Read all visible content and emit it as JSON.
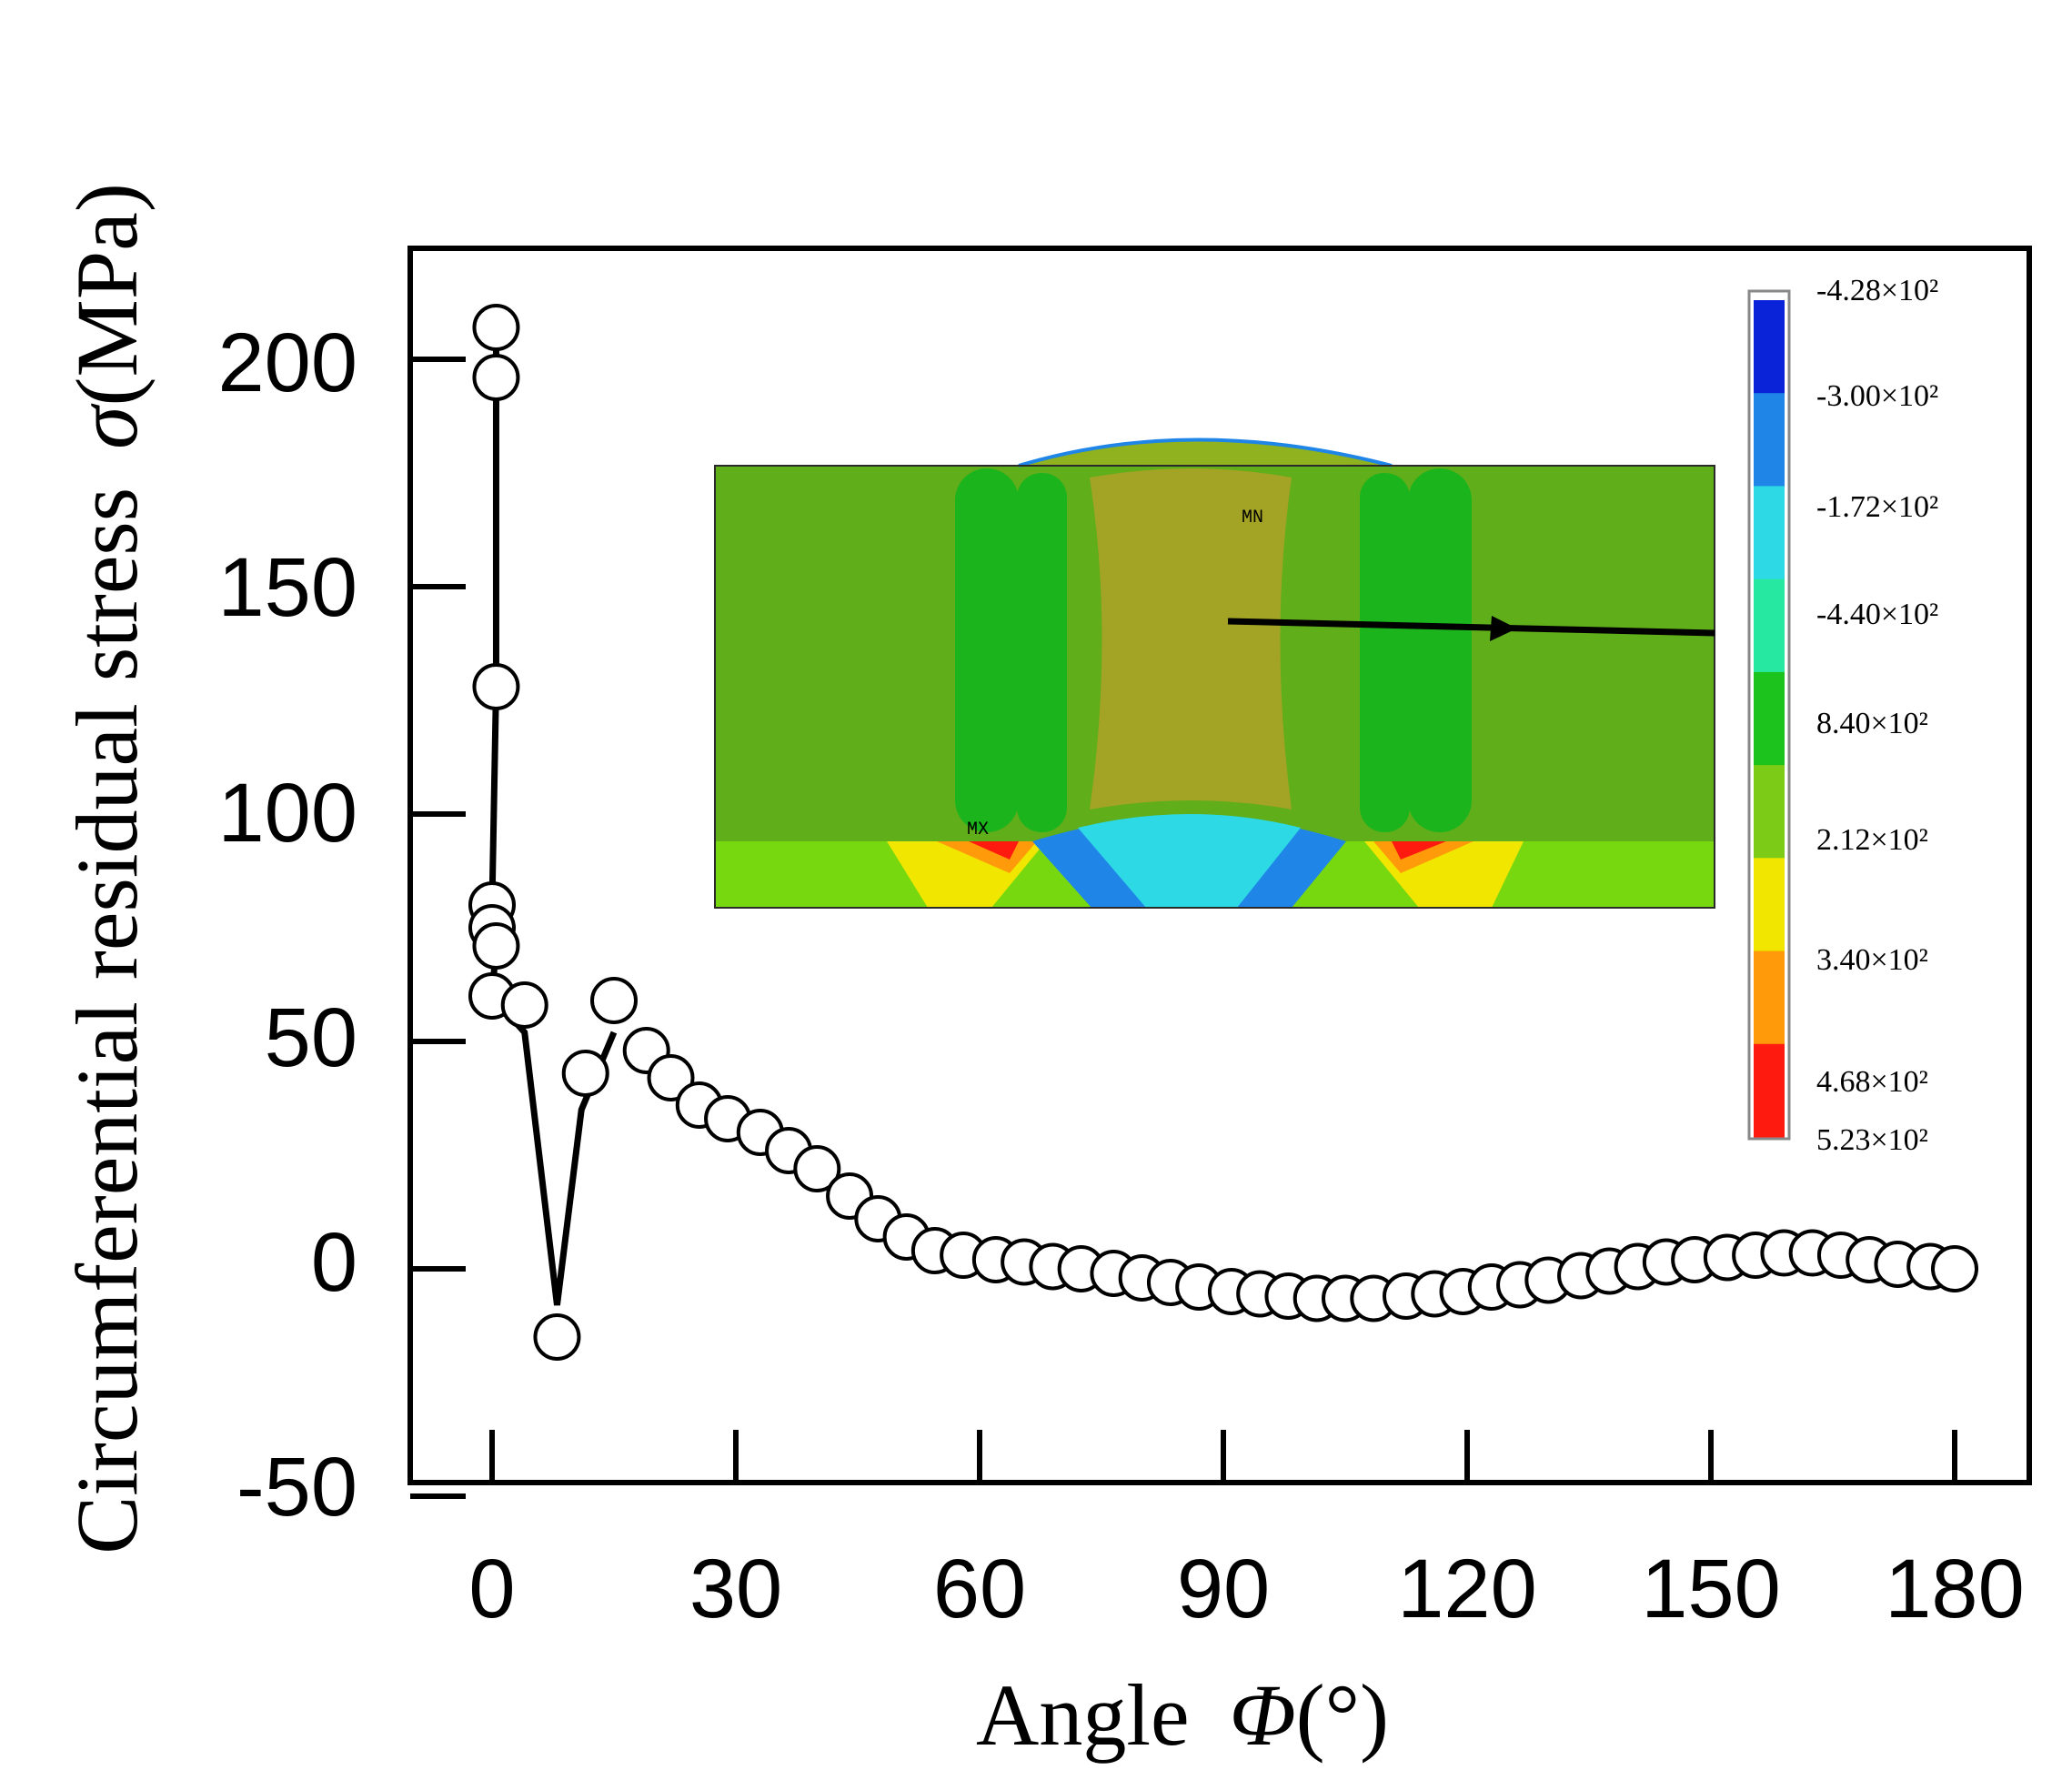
{
  "chart_data": {
    "type": "scatter",
    "title": "",
    "xlabel": "Angle",
    "xlabel_symbol": "Φ",
    "xlabel_unit": "(°)",
    "ylabel": "Circumferential residual stress",
    "ylabel_symbol": "σ",
    "ylabel_unit": "(MPa)",
    "xlim": [
      -17,
      185
    ],
    "ylim": [
      -50,
      225
    ],
    "xticks": [
      "0",
      "30",
      "60",
      "90",
      "120",
      "150",
      "180"
    ],
    "yticks": [
      "-50",
      "0",
      "50",
      "100",
      "150",
      "200"
    ],
    "grid": false,
    "series": [
      {
        "name": "circumferential residual stress",
        "marker": "open-circle",
        "line_color": "#000000",
        "x": [
          0.5,
          0.5,
          0.5,
          0,
          0,
          0.5,
          0,
          4,
          8,
          11.5,
          15,
          19,
          22,
          25.5,
          29,
          33,
          36.5,
          40,
          44,
          47.5,
          51,
          54.5,
          58,
          62,
          65.5,
          69,
          72.5,
          76.5,
          80,
          83.5,
          87,
          91,
          94.5,
          98,
          101.5,
          105,
          108.5,
          112.5,
          116,
          119.5,
          123,
          126.5,
          130,
          134,
          137.5,
          141,
          144.5,
          148,
          152,
          155.5,
          159,
          162.5,
          166,
          169.5,
          173,
          177,
          180
        ],
        "y": [
          207,
          196,
          128,
          80,
          75,
          71,
          60,
          58,
          -15,
          43,
          59,
          48,
          42,
          36,
          33,
          30,
          26,
          22,
          16,
          11,
          7,
          4,
          3,
          2,
          1.5,
          0.5,
          0,
          -1,
          -2,
          -3,
          -4,
          -5,
          -5.5,
          -6,
          -6.5,
          -6.5,
          -6.5,
          -6,
          -5.5,
          -5,
          -4,
          -3.5,
          -2.5,
          -1.5,
          -0.5,
          0.5,
          1.5,
          2,
          2.5,
          3,
          3.5,
          3.5,
          3,
          2,
          1,
          0.5,
          0
        ]
      }
    ],
    "trend_line": {
      "x": [
        0.5,
        0.5,
        0.5,
        0,
        0,
        0.5,
        0,
        4,
        8,
        11,
        15
      ],
      "y": [
        207,
        196,
        128,
        80,
        75,
        71,
        60,
        52,
        -8,
        35,
        52
      ]
    },
    "inset": {
      "description": "FE contour of weld cross-section",
      "marker_min": "MN",
      "marker_max": "MX",
      "colorbar_labels": [
        "-4.28×10²",
        "-3.00×10²",
        "-1.72×10²",
        "-4.40×10²",
        "8.40×10²",
        "2.12×10²",
        "3.40×10²",
        "4.68×10²",
        "5.23×10²"
      ],
      "colorbar_colors": [
        "#0a22d8",
        "#1f86e8",
        "#2ed9e6",
        "#26e8a0",
        "#1cc31c",
        "#7ccb16",
        "#f0e600",
        "#ff9a0a",
        "#ff1a10"
      ]
    }
  }
}
